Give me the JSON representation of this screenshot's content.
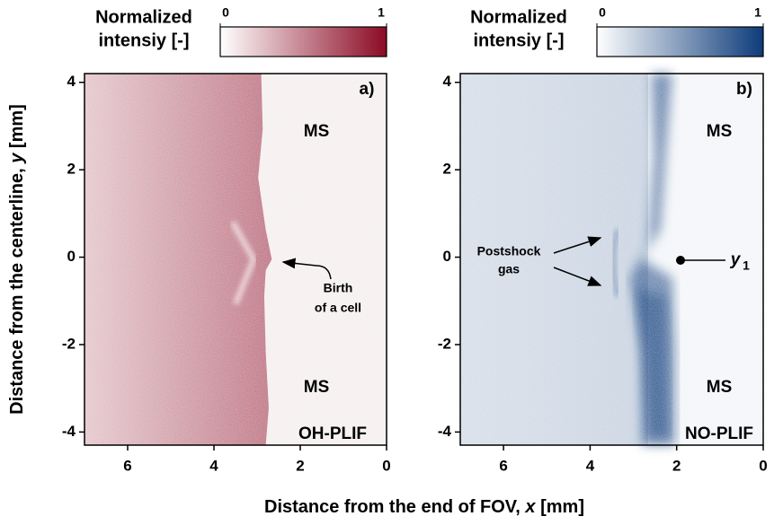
{
  "figure": {
    "ylabel": [
      "Distance from the centerline, ",
      "y",
      " [mm]"
    ],
    "xlabel": [
      "Distance from the end of FOV, ",
      "x",
      " [mm]"
    ]
  },
  "chart_data": [
    {
      "type": "image",
      "xlim": [
        7,
        0
      ],
      "ylim": [
        -4.3,
        4.2
      ],
      "xticks": [
        6,
        4,
        2,
        0
      ],
      "yticks": [
        4,
        2,
        0,
        -2,
        -4
      ],
      "colorbar": {
        "label": [
          "Normalized",
          "intensiy [-]"
        ],
        "clim": [
          0,
          1
        ],
        "ticks": [
          0,
          1
        ],
        "colors": [
          "#ffffff",
          "#8b0a24"
        ]
      },
      "annotation_color": "#8b1a2e",
      "annotations": [
        "a)",
        "MS",
        "MS",
        "OH-PLIF",
        "Birth",
        "of a cell"
      ]
    },
    {
      "type": "image",
      "xlim": [
        7,
        0
      ],
      "ylim": [
        -4.3,
        4.2
      ],
      "xticks": [
        6,
        4,
        2,
        0
      ],
      "yticks": [
        4,
        2,
        0,
        -2,
        -4
      ],
      "colorbar": {
        "label": [
          "Normalized",
          "intensiy [-]"
        ],
        "clim": [
          0,
          1
        ],
        "ticks": [
          0,
          1
        ],
        "colors": [
          "#ffffff",
          "#0d3b7a"
        ]
      },
      "annotation_color": "#1f3f73",
      "annotations": [
        "b)",
        "MS",
        "MS",
        "NO-PLIF",
        "Postshock",
        "gas",
        "y",
        "1"
      ]
    }
  ]
}
